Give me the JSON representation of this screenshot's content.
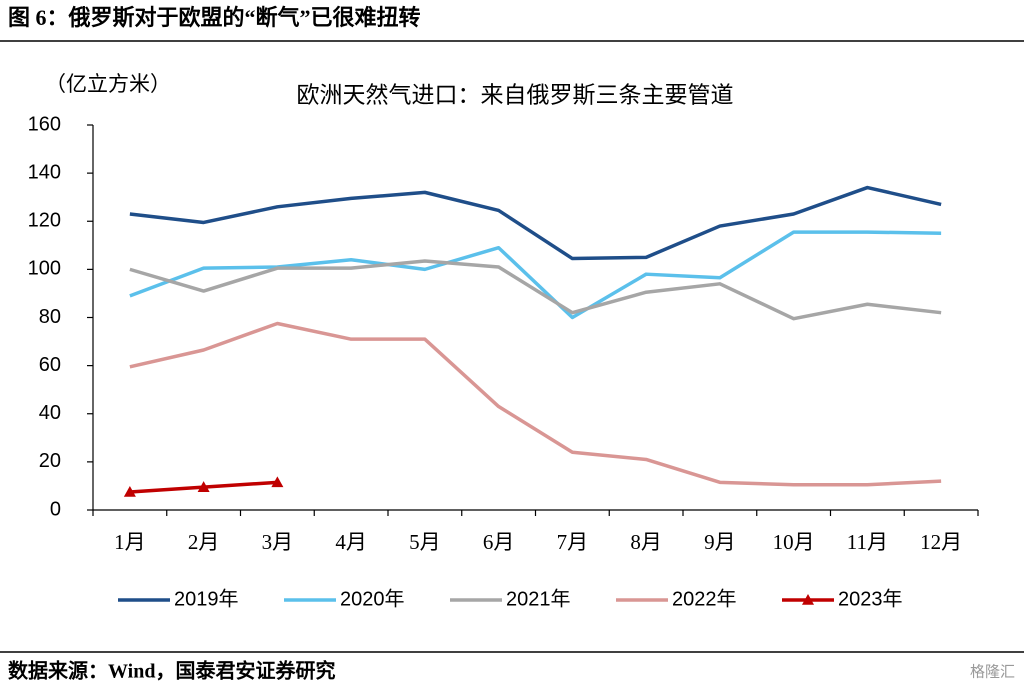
{
  "header": {
    "title": "图 6：俄罗斯对于欧盟的“断气”已很难扭转"
  },
  "chart_data": {
    "type": "line",
    "title": "欧洲天然气进口：来自俄罗斯三条主要管道",
    "y_label": "（亿立方米）",
    "categories": [
      "1月",
      "2月",
      "3月",
      "4月",
      "5月",
      "6月",
      "7月",
      "8月",
      "9月",
      "10月",
      "11月",
      "12月"
    ],
    "series": [
      {
        "name": "2019年",
        "color": "#1f4e89",
        "values": [
          123,
          119.5,
          126,
          129.5,
          132,
          124.5,
          104.5,
          105,
          118,
          123,
          134,
          127
        ]
      },
      {
        "name": "2020年",
        "color": "#5bc0eb",
        "values": [
          89,
          100.5,
          101,
          104,
          100,
          109,
          80,
          98,
          96.5,
          115.5,
          115.5,
          115
        ]
      },
      {
        "name": "2021年",
        "color": "#a6a6a6",
        "values": [
          100,
          91,
          100.5,
          100.5,
          103.5,
          101,
          82,
          90.5,
          94,
          79.5,
          85.5,
          82
        ]
      },
      {
        "name": "2022年",
        "color": "#d99694",
        "values": [
          59.5,
          66.5,
          77.5,
          71,
          71,
          43,
          24,
          21,
          11.5,
          10.5,
          10.5,
          12
        ]
      },
      {
        "name": "2023年",
        "color": "#c00000",
        "marker": "triangle",
        "values": [
          7.5,
          9.5,
          11.5,
          null,
          null,
          null,
          null,
          null,
          null,
          null,
          null,
          null
        ]
      }
    ],
    "ylim": [
      0,
      160
    ],
    "yticks": [
      0,
      20,
      40,
      60,
      80,
      100,
      120,
      140,
      160
    ],
    "legend": "bottom"
  },
  "footer": {
    "source": "数据来源：Wind，国泰君安证券研究",
    "watermark": "格隆汇"
  }
}
